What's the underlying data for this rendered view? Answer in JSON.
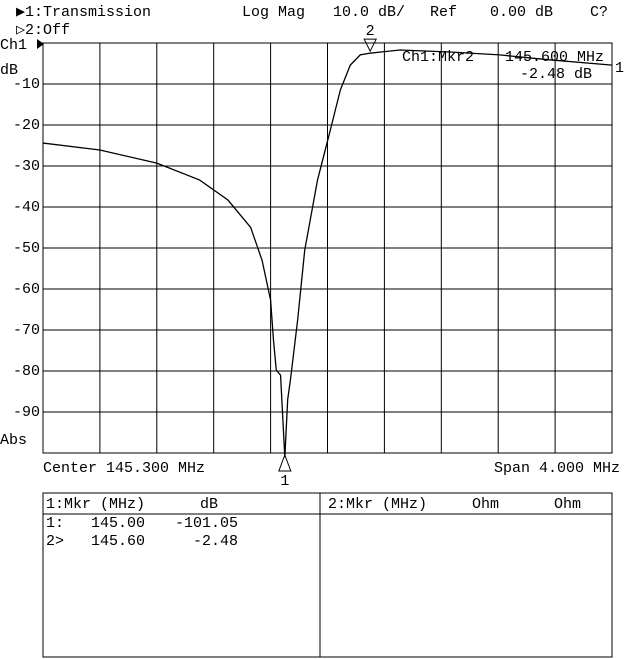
{
  "header": {
    "channel1": "▶1:Transmission",
    "format": "Log Mag",
    "scale": "10.0 dB/",
    "ref_label": "Ref",
    "ref_value": "0.00 dB",
    "status": "C?",
    "channel2": "▷2:Off"
  },
  "readout": {
    "marker": "Ch1:Mkr2",
    "frequency": "145.600 MHz",
    "value": "-2.48 dB"
  },
  "chart_data": {
    "type": "line",
    "channel_label": "Ch1",
    "unit_label": "dB",
    "bottom_label": "Abs",
    "center_label": "Center 145.300 MHz",
    "span_label": "Span 4.000 MHz",
    "trace_label": "1",
    "xlim": [
      143.3,
      147.3
    ],
    "xticks": [
      143.7,
      144.1,
      144.5,
      144.9,
      145.3,
      145.7,
      146.1,
      146.5,
      146.9
    ],
    "ylim": [
      -100,
      0
    ],
    "yticks": [
      -10,
      -20,
      -30,
      -40,
      -50,
      -60,
      -70,
      -80,
      -90
    ],
    "grid": true,
    "series": [
      {
        "color": "#000000",
        "x": [
          143.3,
          143.7,
          144.1,
          144.4,
          144.6,
          144.76,
          144.84,
          144.9,
          144.92,
          144.94,
          144.97,
          145.0,
          145.02,
          145.04,
          145.09,
          145.14,
          145.23,
          145.32,
          145.39,
          145.46,
          145.53,
          145.6,
          145.81,
          146.16,
          146.51,
          146.86,
          147.3
        ],
        "values": [
          -24.4,
          -26.1,
          -29.3,
          -33.4,
          -38.3,
          -45,
          -53,
          -62.7,
          -72.4,
          -79.8,
          -81,
          -101.05,
          -87,
          -82,
          -67.6,
          -50.5,
          -33.4,
          -21.2,
          -11.5,
          -5.4,
          -2.9,
          -2.48,
          -1.7,
          -2.2,
          -2.9,
          -4.1,
          -5.4
        ]
      }
    ],
    "markers": [
      {
        "label": "1",
        "x": 145.0,
        "y": -101.05
      },
      {
        "label": "2",
        "x": 145.6,
        "y": -2.48
      }
    ]
  },
  "table": {
    "left_header": [
      "1:Mkr (MHz)",
      "dB"
    ],
    "right_header": [
      "2:Mkr (MHz)",
      "Ohm",
      "Ohm"
    ],
    "rows": [
      [
        "1:",
        "145.00",
        "-101.05"
      ],
      [
        "2>",
        "145.60",
        "-2.48"
      ]
    ]
  }
}
